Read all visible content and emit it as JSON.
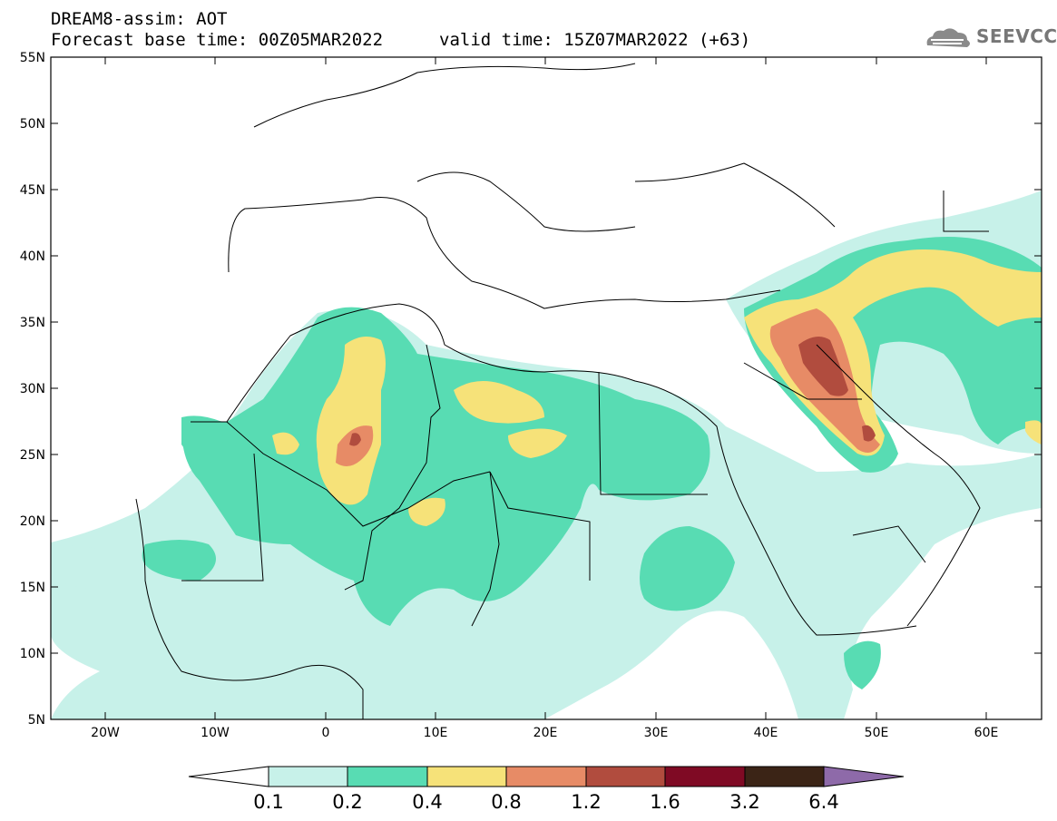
{
  "header": {
    "title": "DREAM8-assim: AOT",
    "base_time": "Forecast base time: 00Z05MAR2022",
    "valid_time": "valid time: 15Z07MAR2022 (+63)",
    "logo_text": "SEEVCCC"
  },
  "map": {
    "lat_labels": [
      "55N",
      "50N",
      "45N",
      "40N",
      "35N",
      "30N",
      "25N",
      "20N",
      "15N",
      "10N",
      "5N"
    ],
    "lon_labels": [
      "20W",
      "10W",
      "0",
      "10E",
      "20E",
      "30E",
      "40E",
      "50E",
      "60E"
    ],
    "lat_range": [
      5,
      55
    ],
    "lon_range": [
      -25,
      65
    ]
  },
  "colorbar": {
    "labels": [
      "0.1",
      "0.2",
      "0.4",
      "0.8",
      "1.2",
      "1.6",
      "3.2",
      "6.4"
    ],
    "colors": [
      "#c7f1e9",
      "#58dcb3",
      "#f6e279",
      "#e78b66",
      "#b14c3e",
      "#7f0a24",
      "#3b2416",
      "#8e6aa9"
    ]
  }
}
